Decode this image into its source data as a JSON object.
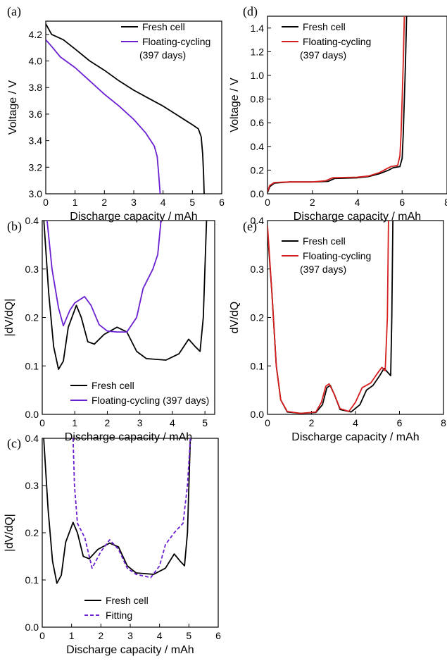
{
  "chart_data": [
    {
      "id": "a",
      "type": "line",
      "panel_label": "(a)",
      "xlabel": "Discharge capacity / mAh",
      "ylabel": "Voltage / V",
      "xlim": [
        0,
        6
      ],
      "ylim": [
        3.0,
        4.3
      ],
      "xticks": [
        "0",
        "1",
        "2",
        "3",
        "4",
        "5",
        "6"
      ],
      "yticks": [
        "3.0",
        "3.2",
        "3.4",
        "3.6",
        "3.8",
        "4.0",
        "4.2"
      ],
      "ytick_values": [
        3.0,
        3.2,
        3.4,
        3.6,
        3.8,
        4.0,
        4.2
      ],
      "legend_position": "top-right",
      "series": [
        {
          "name": "Fresh cell",
          "color": "#000000",
          "dash": false,
          "points": [
            [
              0,
              4.28
            ],
            [
              0.2,
              4.2
            ],
            [
              0.6,
              4.16
            ],
            [
              1.0,
              4.09
            ],
            [
              1.5,
              4.0
            ],
            [
              2.0,
              3.93
            ],
            [
              2.5,
              3.85
            ],
            [
              3.0,
              3.78
            ],
            [
              3.5,
              3.72
            ],
            [
              4.0,
              3.66
            ],
            [
              4.5,
              3.59
            ],
            [
              5.0,
              3.52
            ],
            [
              5.2,
              3.49
            ],
            [
              5.3,
              3.43
            ],
            [
              5.35,
              3.3
            ],
            [
              5.38,
              3.15
            ],
            [
              5.4,
              3.0
            ]
          ]
        },
        {
          "name": "Floating-cycling\n(397 days)",
          "color": "#6a1fd0",
          "dash": false,
          "points": [
            [
              0,
              4.16
            ],
            [
              0.2,
              4.11
            ],
            [
              0.5,
              4.03
            ],
            [
              1.0,
              3.95
            ],
            [
              1.5,
              3.85
            ],
            [
              2.0,
              3.75
            ],
            [
              2.5,
              3.66
            ],
            [
              3.0,
              3.56
            ],
            [
              3.4,
              3.46
            ],
            [
              3.7,
              3.36
            ],
            [
              3.8,
              3.28
            ],
            [
              3.85,
              3.15
            ],
            [
              3.9,
              3.0
            ]
          ]
        }
      ]
    },
    {
      "id": "b",
      "type": "line",
      "panel_label": "(b)",
      "xlabel": "Discharge capacity / mAh",
      "ylabel": "|dV/dQ|",
      "xlim": [
        0,
        5.3
      ],
      "ylim": [
        0,
        0.4
      ],
      "xticks": [
        "0",
        "1",
        "2",
        "3",
        "4",
        "5"
      ],
      "yticks": [
        "0.0",
        "0.1",
        "0.2",
        "0.3",
        "0.4"
      ],
      "ytick_values": [
        0,
        0.1,
        0.2,
        0.3,
        0.4
      ],
      "legend_position": "bottom-right",
      "series": [
        {
          "name": "Fresh cell",
          "color": "#000000",
          "dash": false,
          "points": [
            [
              0.05,
              0.4
            ],
            [
              0.2,
              0.25
            ],
            [
              0.35,
              0.14
            ],
            [
              0.5,
              0.093
            ],
            [
              0.65,
              0.11
            ],
            [
              0.8,
              0.18
            ],
            [
              1.05,
              0.225
            ],
            [
              1.2,
              0.2
            ],
            [
              1.4,
              0.15
            ],
            [
              1.6,
              0.145
            ],
            [
              1.9,
              0.165
            ],
            [
              2.3,
              0.18
            ],
            [
              2.6,
              0.17
            ],
            [
              2.9,
              0.13
            ],
            [
              3.2,
              0.115
            ],
            [
              3.8,
              0.112
            ],
            [
              4.2,
              0.125
            ],
            [
              4.5,
              0.155
            ],
            [
              4.7,
              0.14
            ],
            [
              4.85,
              0.13
            ],
            [
              4.95,
              0.2
            ],
            [
              5.05,
              0.4
            ]
          ]
        },
        {
          "name": "Floating-cycling (397 days)",
          "color": "#6a1fd0",
          "dash": false,
          "points": [
            [
              0.15,
              0.4
            ],
            [
              0.3,
              0.3
            ],
            [
              0.5,
              0.22
            ],
            [
              0.65,
              0.183
            ],
            [
              0.85,
              0.215
            ],
            [
              1.0,
              0.23
            ],
            [
              1.3,
              0.243
            ],
            [
              1.5,
              0.225
            ],
            [
              1.75,
              0.185
            ],
            [
              2.0,
              0.172
            ],
            [
              2.3,
              0.17
            ],
            [
              2.6,
              0.17
            ],
            [
              2.9,
              0.2
            ],
            [
              3.1,
              0.26
            ],
            [
              3.4,
              0.3
            ],
            [
              3.55,
              0.33
            ],
            [
              3.65,
              0.4
            ]
          ]
        }
      ]
    },
    {
      "id": "c",
      "type": "line",
      "panel_label": "(c)",
      "xlabel": "Discharge capacity / mAh",
      "ylabel": "|dV/dQ|",
      "xlim": [
        0,
        6
      ],
      "ylim": [
        0,
        0.4
      ],
      "xticks": [
        "0",
        "1",
        "2",
        "3",
        "4",
        "5",
        "6"
      ],
      "yticks": [
        "0.0",
        "0.1",
        "0.2",
        "0.3",
        "0.4"
      ],
      "ytick_values": [
        0,
        0.1,
        0.2,
        0.3,
        0.4
      ],
      "legend_position": "bottom-right",
      "series": [
        {
          "name": "Fresh cell",
          "color": "#000000",
          "dash": false,
          "points": [
            [
              0.05,
              0.4
            ],
            [
              0.2,
              0.25
            ],
            [
              0.35,
              0.14
            ],
            [
              0.5,
              0.093
            ],
            [
              0.65,
              0.11
            ],
            [
              0.8,
              0.18
            ],
            [
              1.05,
              0.222
            ],
            [
              1.2,
              0.2
            ],
            [
              1.4,
              0.15
            ],
            [
              1.6,
              0.145
            ],
            [
              1.9,
              0.165
            ],
            [
              2.3,
              0.178
            ],
            [
              2.6,
              0.17
            ],
            [
              2.9,
              0.13
            ],
            [
              3.2,
              0.115
            ],
            [
              3.8,
              0.112
            ],
            [
              4.2,
              0.125
            ],
            [
              4.5,
              0.155
            ],
            [
              4.7,
              0.14
            ],
            [
              4.85,
              0.13
            ],
            [
              4.95,
              0.2
            ],
            [
              5.05,
              0.4
            ]
          ]
        },
        {
          "name": "Fitting",
          "color": "#6a1fd0",
          "dash": true,
          "points": [
            [
              1.05,
              0.4
            ],
            [
              1.1,
              0.3
            ],
            [
              1.2,
              0.22
            ],
            [
              1.45,
              0.19
            ],
            [
              1.7,
              0.125
            ],
            [
              2.0,
              0.16
            ],
            [
              2.3,
              0.185
            ],
            [
              2.6,
              0.165
            ],
            [
              2.9,
              0.125
            ],
            [
              3.2,
              0.112
            ],
            [
              3.7,
              0.105
            ],
            [
              4.0,
              0.13
            ],
            [
              4.2,
              0.175
            ],
            [
              4.5,
              0.2
            ],
            [
              4.8,
              0.22
            ],
            [
              4.95,
              0.3
            ],
            [
              5.05,
              0.4
            ]
          ]
        }
      ]
    },
    {
      "id": "d",
      "type": "line",
      "panel_label": "(d)",
      "xlabel": "Discharge capacity / mAh",
      "ylabel": "Voltage / V",
      "xlim": [
        0,
        8
      ],
      "ylim": [
        0,
        1.5
      ],
      "xticks": [
        "0",
        "2",
        "4",
        "6",
        "8"
      ],
      "yticks": [
        "0.0",
        "0.2",
        "0.4",
        "0.6",
        "0.8",
        "1.0",
        "1.2",
        "1.4"
      ],
      "ytick_values": [
        0,
        0.2,
        0.4,
        0.6,
        0.8,
        1.0,
        1.2,
        1.4
      ],
      "legend_position": "top-left",
      "series": [
        {
          "name": "Fresh cell",
          "color": "#000000",
          "dash": false,
          "points": [
            [
              0,
              0.01
            ],
            [
              0.1,
              0.06
            ],
            [
              0.3,
              0.09
            ],
            [
              1.0,
              0.1
            ],
            [
              2.0,
              0.1
            ],
            [
              2.7,
              0.105
            ],
            [
              3.0,
              0.13
            ],
            [
              4.0,
              0.135
            ],
            [
              4.5,
              0.145
            ],
            [
              5.0,
              0.17
            ],
            [
              5.4,
              0.2
            ],
            [
              5.6,
              0.22
            ],
            [
              5.9,
              0.23
            ],
            [
              6.0,
              0.3
            ],
            [
              6.05,
              0.5
            ],
            [
              6.1,
              0.8
            ],
            [
              6.15,
              1.1
            ],
            [
              6.2,
              1.5
            ]
          ]
        },
        {
          "name": "Floating-cycling\n(397 days)",
          "color": "#d61f1f",
          "dash": false,
          "points": [
            [
              0,
              0.02
            ],
            [
              0.1,
              0.07
            ],
            [
              0.3,
              0.095
            ],
            [
              1.0,
              0.1
            ],
            [
              2.0,
              0.1
            ],
            [
              2.6,
              0.11
            ],
            [
              2.9,
              0.135
            ],
            [
              4.0,
              0.14
            ],
            [
              4.5,
              0.15
            ],
            [
              5.0,
              0.18
            ],
            [
              5.3,
              0.21
            ],
            [
              5.5,
              0.23
            ],
            [
              5.8,
              0.24
            ],
            [
              5.9,
              0.32
            ],
            [
              5.95,
              0.5
            ],
            [
              6.0,
              0.8
            ],
            [
              6.05,
              1.1
            ],
            [
              6.1,
              1.5
            ]
          ]
        }
      ]
    },
    {
      "id": "e",
      "type": "line",
      "panel_label": "(e)",
      "xlabel": "Discharge capacity / mAh",
      "ylabel": "dV/dQ",
      "xlim": [
        0,
        8
      ],
      "ylim": [
        0,
        0.4
      ],
      "xticks": [
        "0",
        "2",
        "4",
        "6",
        "8"
      ],
      "yticks": [
        "0.0",
        "0.1",
        "0.2",
        "0.3",
        "0.4"
      ],
      "ytick_values": [
        0,
        0.1,
        0.2,
        0.3,
        0.4
      ],
      "legend_position": "top-left",
      "series": [
        {
          "name": "Fresh cell",
          "color": "#000000",
          "dash": false,
          "points": [
            [
              0,
              0.38
            ],
            [
              0.2,
              0.25
            ],
            [
              0.4,
              0.1
            ],
            [
              0.6,
              0.03
            ],
            [
              0.9,
              0.005
            ],
            [
              1.5,
              0.002
            ],
            [
              2.2,
              0.004
            ],
            [
              2.5,
              0.02
            ],
            [
              2.7,
              0.055
            ],
            [
              2.85,
              0.06
            ],
            [
              3.05,
              0.04
            ],
            [
              3.3,
              0.01
            ],
            [
              3.8,
              0.005
            ],
            [
              4.2,
              0.02
            ],
            [
              4.5,
              0.05
            ],
            [
              4.8,
              0.06
            ],
            [
              5.1,
              0.08
            ],
            [
              5.3,
              0.095
            ],
            [
              5.5,
              0.085
            ],
            [
              5.6,
              0.08
            ],
            [
              5.65,
              0.2
            ],
            [
              5.7,
              0.4
            ]
          ]
        },
        {
          "name": "Floating-cycling\n(397 days)",
          "color": "#d61f1f",
          "dash": false,
          "points": [
            [
              0,
              0.39
            ],
            [
              0.2,
              0.25
            ],
            [
              0.4,
              0.1
            ],
            [
              0.6,
              0.03
            ],
            [
              0.9,
              0.006
            ],
            [
              1.5,
              0.002
            ],
            [
              2.2,
              0.005
            ],
            [
              2.45,
              0.025
            ],
            [
              2.65,
              0.058
            ],
            [
              2.8,
              0.063
            ],
            [
              3.0,
              0.045
            ],
            [
              3.3,
              0.012
            ],
            [
              3.7,
              0.006
            ],
            [
              4.0,
              0.025
            ],
            [
              4.3,
              0.055
            ],
            [
              4.7,
              0.065
            ],
            [
              5.0,
              0.085
            ],
            [
              5.2,
              0.097
            ],
            [
              5.35,
              0.09
            ],
            [
              5.45,
              0.2
            ],
            [
              5.5,
              0.4
            ]
          ]
        }
      ]
    }
  ]
}
